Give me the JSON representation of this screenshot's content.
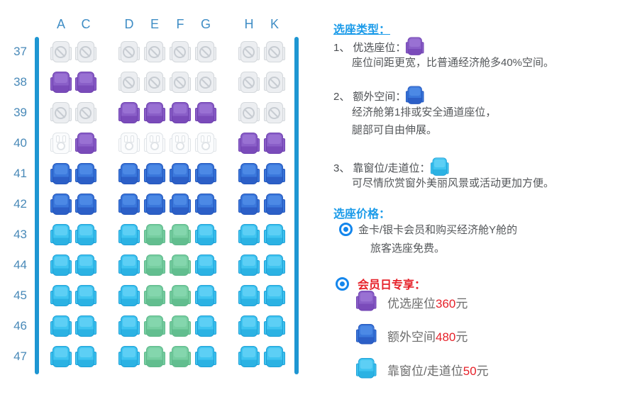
{
  "seat_map": {
    "columns": [
      "A",
      "C",
      "D",
      "E",
      "F",
      "G",
      "H",
      "K"
    ],
    "rows": [
      {
        "number": "37",
        "seats": [
          "blocked",
          "blocked",
          "blocked",
          "blocked",
          "blocked",
          "blocked",
          "blocked",
          "blocked"
        ]
      },
      {
        "number": "38",
        "seats": [
          "premium",
          "premium",
          "blocked",
          "blocked",
          "blocked",
          "blocked",
          "blocked",
          "blocked"
        ]
      },
      {
        "number": "39",
        "seats": [
          "blocked",
          "blocked",
          "premium",
          "premium",
          "premium",
          "premium",
          "blocked",
          "blocked"
        ]
      },
      {
        "number": "40",
        "seats": [
          "occupied",
          "premium",
          "occupied",
          "occupied",
          "occupied",
          "occupied",
          "premium",
          "premium"
        ]
      },
      {
        "number": "41",
        "seats": [
          "extra",
          "extra",
          "extra",
          "extra",
          "extra",
          "extra",
          "extra",
          "extra"
        ]
      },
      {
        "number": "42",
        "seats": [
          "extra",
          "extra",
          "extra",
          "extra",
          "extra",
          "extra",
          "extra",
          "extra"
        ]
      },
      {
        "number": "43",
        "seats": [
          "window",
          "window",
          "window",
          "standard",
          "standard",
          "window",
          "window",
          "window"
        ]
      },
      {
        "number": "44",
        "seats": [
          "window",
          "window",
          "window",
          "standard",
          "standard",
          "window",
          "window",
          "window"
        ]
      },
      {
        "number": "45",
        "seats": [
          "window",
          "window",
          "window",
          "standard",
          "standard",
          "window",
          "window",
          "window"
        ]
      },
      {
        "number": "46",
        "seats": [
          "window",
          "window",
          "window",
          "standard",
          "standard",
          "window",
          "window",
          "window"
        ]
      },
      {
        "number": "47",
        "seats": [
          "window",
          "window",
          "window",
          "standard",
          "standard",
          "window",
          "window",
          "window"
        ]
      }
    ]
  },
  "colors": {
    "wall_blue": "#1E96D2",
    "heading_blue": "#1B9BE9",
    "price_red": "#E62129",
    "premium_seat": "#8A5FC8",
    "extra_space_seat": "#3A77DB",
    "window_aisle_seat": "#3FC4F0",
    "standard_seat": "#76CEA1",
    "blocked_seat": "#ECEEF1"
  },
  "panel": {
    "type_heading": "选座类型：",
    "items": [
      {
        "num": "1、",
        "label": "优选座位：",
        "desc1": "座位间距更宽，比普通经济舱多40%空间。"
      },
      {
        "num": "2、",
        "label": "额外空间：",
        "desc1": "经济舱第1排或安全通道座位，",
        "desc2": "腿部可自由伸展。"
      },
      {
        "num": "3、",
        "label": "靠窗位/走道位：",
        "desc1": "可尽情欣赏窗外美丽风景或活动更加方便。"
      }
    ],
    "price_heading": "选座价格：",
    "free_note_line1": "金卡/银卡会员和购买经济舱Y舱的",
    "free_note_line2": "旅客选座免费。",
    "member_day": {
      "title": "会员日专享：",
      "items": [
        {
          "label": "优选座位",
          "price": "360",
          "unit": "元"
        },
        {
          "label": "额外空间",
          "price": "480",
          "unit": "元"
        },
        {
          "label": "靠窗位/走道位",
          "price": "50",
          "unit": "元"
        }
      ]
    }
  }
}
